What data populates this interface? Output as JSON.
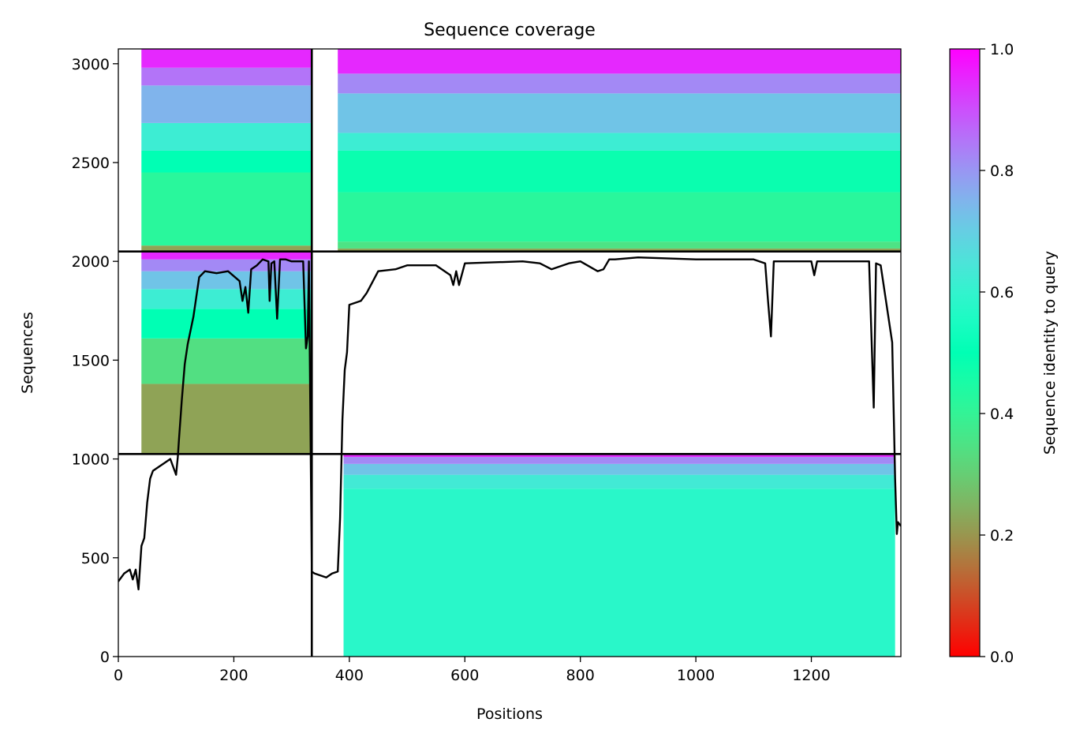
{
  "chart_data": {
    "type": "heatmap",
    "title": "Sequence coverage",
    "xlabel": "Positions",
    "ylabel": "Sequences",
    "xlim": [
      0,
      1355
    ],
    "ylim": [
      0,
      3075
    ],
    "x_ticks": [
      0,
      200,
      400,
      600,
      800,
      1000,
      1200
    ],
    "y_ticks": [
      0,
      500,
      1000,
      1500,
      2000,
      2500,
      3000
    ],
    "grid": false,
    "colorbar": {
      "label": "Sequence identity to query",
      "colormap": "rainbow",
      "range": [
        0.0,
        1.0
      ],
      "ticks": [
        "0.0",
        "0.2",
        "0.4",
        "0.6",
        "0.8",
        "1.0"
      ]
    },
    "boundaries": {
      "x": [
        0,
        335,
        1355
      ],
      "y": [
        0,
        1025,
        2050,
        3075
      ]
    },
    "msa_blocks": [
      {
        "x": [
          0,
          335
        ],
        "y": [
          2050,
          3075
        ],
        "first_column": 40,
        "last_column": 335,
        "identity_bands": [
          [
            2050,
            2080,
            0.22
          ],
          [
            2080,
            2450,
            0.42
          ],
          [
            2450,
            2560,
            0.5
          ],
          [
            2560,
            2700,
            0.62
          ],
          [
            2700,
            2890,
            0.75
          ],
          [
            2890,
            2980,
            0.85
          ],
          [
            2980,
            3075,
            0.95
          ]
        ]
      },
      {
        "x": [
          335,
          1355
        ],
        "y": [
          2050,
          3075
        ],
        "first_column": 380,
        "last_column": 1355,
        "identity_bands": [
          [
            2050,
            2065,
            0.22
          ],
          [
            2065,
            2100,
            0.35
          ],
          [
            2100,
            2350,
            0.42
          ],
          [
            2350,
            2560,
            0.48
          ],
          [
            2560,
            2650,
            0.62
          ],
          [
            2650,
            2850,
            0.72
          ],
          [
            2850,
            2950,
            0.82
          ],
          [
            2950,
            3075,
            0.95
          ]
        ]
      },
      {
        "x": [
          0,
          335
        ],
        "y": [
          1025,
          2050
        ],
        "first_column": 40,
        "last_column": 335,
        "identity_bands": [
          [
            1025,
            1380,
            0.22
          ],
          [
            1380,
            1610,
            0.34
          ],
          [
            1610,
            1760,
            0.5
          ],
          [
            1760,
            1860,
            0.62
          ],
          [
            1860,
            1950,
            0.72
          ],
          [
            1950,
            2010,
            0.82
          ],
          [
            2010,
            2050,
            0.95
          ]
        ]
      },
      {
        "x": [
          335,
          1355
        ],
        "y": [
          0,
          1025
        ],
        "first_column": 390,
        "last_column": 1345,
        "identity_bands": [
          [
            0,
            850,
            0.58
          ],
          [
            850,
            920,
            0.63
          ],
          [
            920,
            975,
            0.72
          ],
          [
            975,
            1010,
            0.82
          ],
          [
            1010,
            1025,
            0.95
          ]
        ]
      }
    ],
    "coverage_line": {
      "color": "#000000",
      "x": [
        0,
        10,
        20,
        25,
        30,
        35,
        40,
        45,
        50,
        55,
        60,
        70,
        80,
        90,
        100,
        103,
        105,
        110,
        115,
        120,
        130,
        140,
        150,
        170,
        190,
        210,
        215,
        220,
        225,
        230,
        240,
        250,
        260,
        262,
        265,
        270,
        275,
        280,
        290,
        300,
        310,
        320,
        325,
        328,
        330,
        335,
        340,
        360,
        370,
        380,
        384,
        388,
        392,
        396,
        400,
        420,
        430,
        450,
        480,
        500,
        550,
        575,
        580,
        585,
        590,
        600,
        700,
        730,
        750,
        780,
        800,
        830,
        840,
        850,
        860,
        900,
        1000,
        1100,
        1120,
        1125,
        1130,
        1135,
        1150,
        1200,
        1205,
        1210,
        1300,
        1308,
        1312,
        1320,
        1340,
        1345,
        1348,
        1350,
        1355
      ],
      "y": [
        380,
        420,
        440,
        390,
        440,
        340,
        560,
        600,
        780,
        900,
        940,
        960,
        980,
        1000,
        920,
        1010,
        1100,
        1300,
        1480,
        1580,
        1720,
        1920,
        1950,
        1940,
        1950,
        1900,
        1800,
        1870,
        1740,
        1960,
        1980,
        2010,
        2000,
        1800,
        1990,
        2000,
        1710,
        2010,
        2010,
        2000,
        2000,
        2000,
        1560,
        1620,
        2000,
        430,
        420,
        400,
        420,
        430,
        700,
        1200,
        1450,
        1540,
        1780,
        1800,
        1840,
        1950,
        1960,
        1980,
        1980,
        1930,
        1880,
        1950,
        1880,
        1990,
        2000,
        1990,
        1960,
        1990,
        2000,
        1950,
        1960,
        2010,
        2010,
        2020,
        2010,
        2010,
        1990,
        1800,
        1620,
        2000,
        2000,
        2000,
        1930,
        2000,
        2000,
        1260,
        1990,
        1980,
        1590,
        900,
        620,
        680,
        660
      ]
    }
  }
}
